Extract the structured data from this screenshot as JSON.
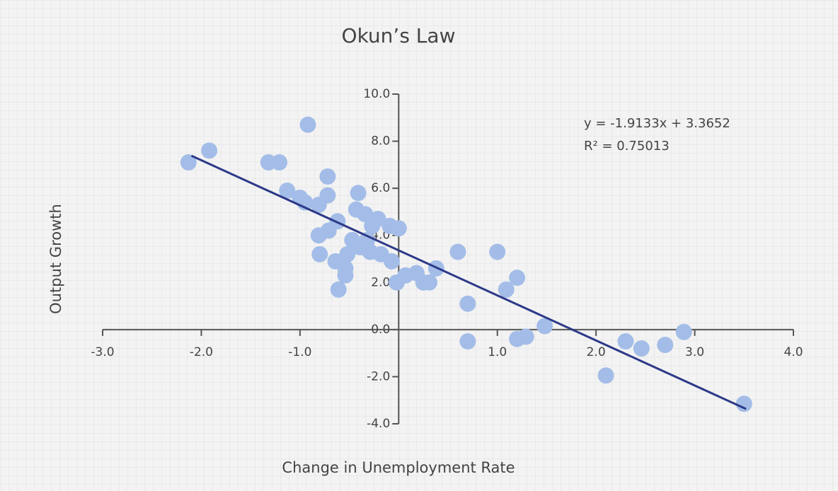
{
  "chart_data": {
    "type": "scatter",
    "title": "Okun’s Law",
    "x_label": "Change in Unemployment Rate",
    "y_label": "Output Growth",
    "annotations": [
      "y = -1.9133x + 3.3652",
      "R² = 0.75013"
    ],
    "color": "#a3bde8",
    "trendline": {
      "slope": -1.9133,
      "intercept": 3.3652,
      "xrange": [
        -2.1,
        3.52
      ],
      "color": "#2d3a88"
    },
    "xlim": [
      -3,
      4
    ],
    "ylim": [
      -4,
      10
    ],
    "xticks": [
      {
        "value": -3,
        "label": "-3.0"
      },
      {
        "value": -2,
        "label": "-2.0"
      },
      {
        "value": -1,
        "label": "-1.0"
      },
      {
        "value": 1,
        "label": "1.0"
      },
      {
        "value": 2,
        "label": "2.0"
      },
      {
        "value": 3,
        "label": "3.0"
      },
      {
        "value": 4,
        "label": "4.0"
      }
    ],
    "yticks": [
      {
        "value": -4,
        "label": "-4.0"
      },
      {
        "value": -2,
        "label": "-2.0"
      },
      {
        "value": 0,
        "label": "0.0"
      },
      {
        "value": 2,
        "label": "2.0"
      },
      {
        "value": 4,
        "label": "4.0"
      },
      {
        "value": 6,
        "label": "6.0"
      },
      {
        "value": 8,
        "label": "8.0"
      },
      {
        "value": 10,
        "label": "10.0"
      }
    ],
    "x": [
      -2.13,
      -1.92,
      -1.32,
      -1.21,
      -0.92,
      -1.13,
      -1.0,
      -0.95,
      -0.72,
      -0.72,
      -0.81,
      -0.41,
      -0.62,
      -0.71,
      -0.81,
      -0.8,
      -0.61,
      -0.64,
      -0.54,
      -0.52,
      -0.43,
      -0.34,
      -0.21,
      -0.09,
      0.0,
      -0.47,
      -0.39,
      -0.29,
      -0.18,
      -0.07,
      -0.02,
      0.07,
      0.18,
      0.25,
      0.31,
      0.38,
      0.6,
      1.0,
      0.7,
      0.7,
      1.09,
      1.2,
      1.2,
      1.29,
      1.48,
      2.1,
      2.3,
      2.46,
      2.7,
      2.89,
      3.5,
      -0.54,
      -0.27,
      -0.32
    ],
    "values": [
      7.1,
      7.6,
      7.1,
      7.1,
      8.7,
      5.9,
      5.6,
      5.4,
      6.5,
      5.7,
      5.3,
      5.8,
      4.6,
      4.2,
      4.0,
      3.2,
      1.7,
      2.9,
      2.6,
      3.2,
      5.1,
      4.9,
      4.7,
      4.4,
      4.3,
      3.8,
      3.5,
      3.3,
      3.2,
      2.9,
      2.0,
      2.3,
      2.4,
      2.0,
      2.0,
      2.6,
      3.3,
      3.3,
      1.1,
      -0.5,
      1.7,
      2.2,
      -0.4,
      -0.3,
      0.15,
      -1.95,
      -0.5,
      -0.8,
      -0.65,
      -0.1,
      -3.15,
      2.3,
      4.4,
      3.8
    ]
  }
}
